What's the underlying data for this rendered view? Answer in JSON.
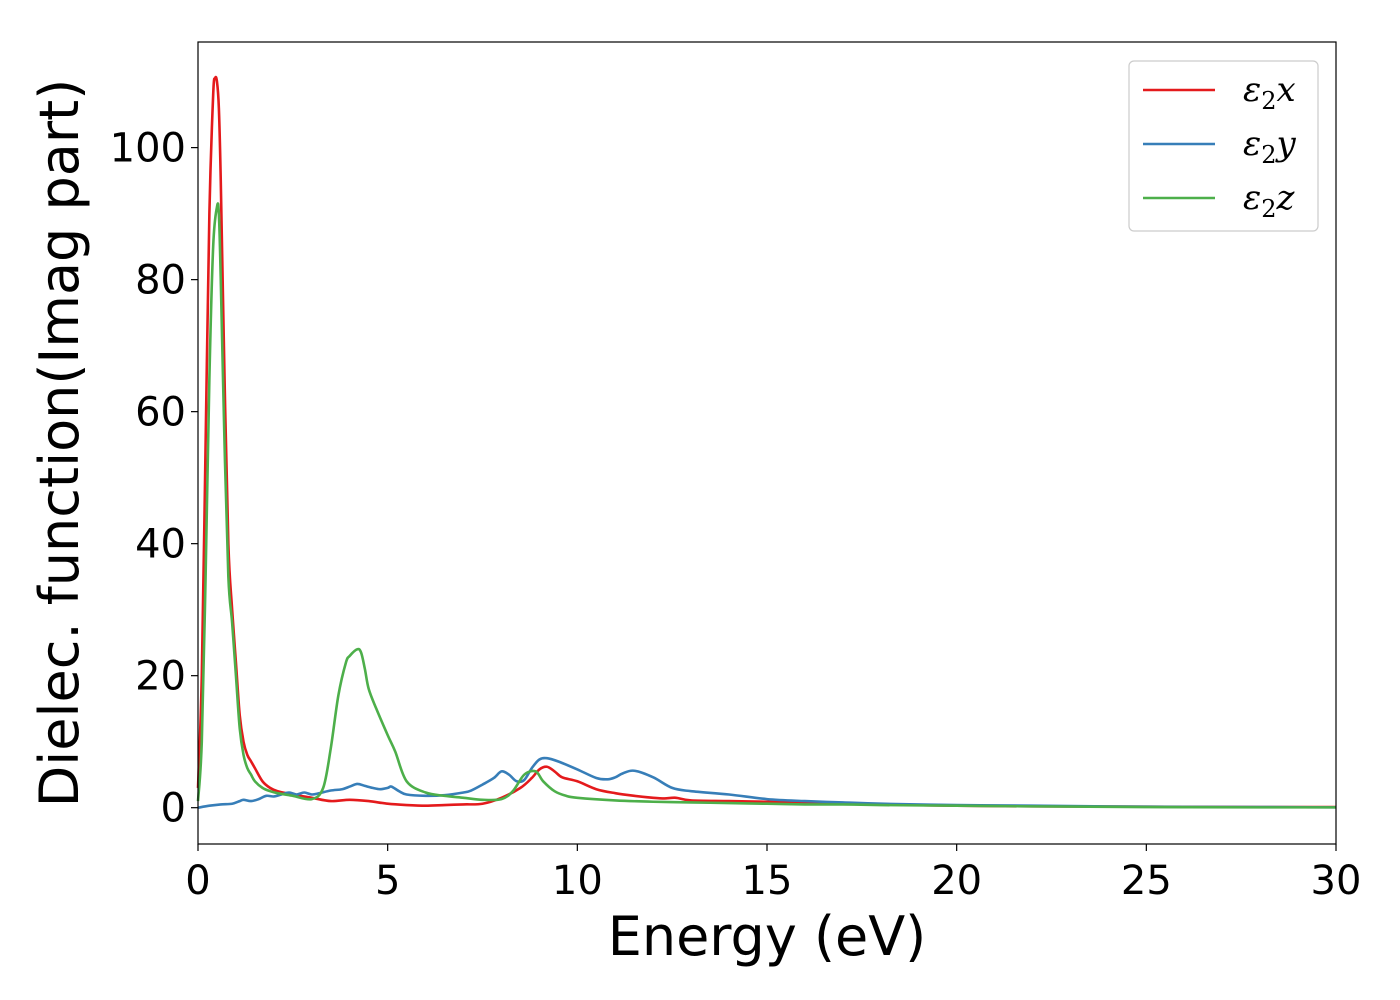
{
  "chart_data": {
    "type": "line",
    "title": "",
    "xlabel": "Energy (eV)",
    "ylabel": "Dielec. function(Imag part)",
    "xlim": [
      0,
      30
    ],
    "ylim": [
      -5.5,
      116
    ],
    "xticks": [
      0,
      5,
      10,
      15,
      20,
      25,
      30
    ],
    "yticks": [
      0,
      20,
      40,
      60,
      80,
      100
    ],
    "grid": false,
    "legend_position": "top-right",
    "series": [
      {
        "name": "ε2x",
        "legend_main": "ε",
        "legend_sub": "2",
        "legend_tail": "x",
        "color": "#e41a1c",
        "x": [
          0,
          0.1,
          0.2,
          0.3,
          0.4,
          0.45,
          0.5,
          0.55,
          0.6,
          0.7,
          0.8,
          0.9,
          1.0,
          1.1,
          1.2,
          1.3,
          1.4,
          1.5,
          1.7,
          1.9,
          2.1,
          2.5,
          3.0,
          3.5,
          4.0,
          4.5,
          5.0,
          5.5,
          6.0,
          6.5,
          7.0,
          7.5,
          8.0,
          8.5,
          8.8,
          9.0,
          9.2,
          9.4,
          9.6,
          10.0,
          10.5,
          11.0,
          11.5,
          12.0,
          12.3,
          12.6,
          13.0,
          14.0,
          15.0,
          16.0,
          17.0,
          18.0,
          20.0,
          22.0,
          25.0,
          28.0,
          30.0
        ],
        "y": [
          3,
          20,
          55,
          90,
          108,
          110.5,
          110,
          106,
          95,
          65,
          40,
          30,
          22,
          14,
          10,
          8,
          7,
          6,
          4,
          3,
          2.5,
          2,
          1.5,
          1,
          1.2,
          1,
          0.6,
          0.4,
          0.3,
          0.4,
          0.5,
          0.6,
          1.5,
          3,
          4.5,
          5.8,
          6.2,
          5.5,
          4.6,
          4,
          2.8,
          2.2,
          1.8,
          1.5,
          1.4,
          1.5,
          1.1,
          1.0,
          0.9,
          0.8,
          0.7,
          0.5,
          0.3,
          0.2,
          0.15,
          0.1,
          0.1
        ]
      },
      {
        "name": "ε2y",
        "legend_main": "ε",
        "legend_sub": "2",
        "legend_tail": "y",
        "color": "#377eb8",
        "x": [
          0,
          0.3,
          0.6,
          0.9,
          1.1,
          1.2,
          1.4,
          1.6,
          1.8,
          2.0,
          2.2,
          2.4,
          2.6,
          2.8,
          3.0,
          3.2,
          3.5,
          3.8,
          4.0,
          4.2,
          4.4,
          4.6,
          4.8,
          5.0,
          5.1,
          5.3,
          5.5,
          6.0,
          6.5,
          7.0,
          7.2,
          7.5,
          7.8,
          8.0,
          8.2,
          8.4,
          8.6,
          8.8,
          9.0,
          9.2,
          9.5,
          10.0,
          10.5,
          10.8,
          11.0,
          11.2,
          11.5,
          12.0,
          12.5,
          13.0,
          14.0,
          15.0,
          16.0,
          17.0,
          18.0,
          20.0,
          22.0,
          25.0,
          28.0,
          30.0
        ],
        "y": [
          0,
          0.3,
          0.5,
          0.6,
          1.0,
          1.2,
          1.0,
          1.3,
          1.8,
          1.7,
          2.0,
          2.3,
          2.0,
          2.3,
          2.0,
          2.2,
          2.6,
          2.8,
          3.2,
          3.6,
          3.3,
          3.0,
          2.8,
          3.0,
          3.2,
          2.5,
          2.0,
          1.8,
          1.9,
          2.3,
          2.6,
          3.5,
          4.5,
          5.5,
          5.0,
          4.0,
          4.2,
          6.0,
          7.3,
          7.5,
          7.0,
          5.8,
          4.5,
          4.3,
          4.6,
          5.2,
          5.6,
          4.6,
          3.0,
          2.5,
          2.0,
          1.3,
          1.0,
          0.8,
          0.6,
          0.4,
          0.3,
          0.15,
          0.1,
          0.05
        ]
      },
      {
        "name": "ε2z",
        "legend_main": "ε",
        "legend_sub": "2",
        "legend_tail": "z",
        "color": "#4daf4a",
        "x": [
          0,
          0.1,
          0.2,
          0.3,
          0.4,
          0.5,
          0.55,
          0.6,
          0.7,
          0.8,
          0.9,
          1.0,
          1.1,
          1.2,
          1.3,
          1.4,
          1.5,
          1.7,
          1.9,
          2.1,
          2.5,
          3.0,
          3.3,
          3.5,
          3.7,
          3.9,
          4.0,
          4.2,
          4.3,
          4.4,
          4.5,
          4.7,
          5.0,
          5.2,
          5.5,
          6.0,
          6.5,
          7.0,
          7.5,
          8.0,
          8.3,
          8.6,
          8.9,
          9.1,
          9.4,
          9.7,
          10.0,
          11.0,
          12.0,
          13.0,
          14.0,
          15.0,
          16.0,
          17.0,
          18.0,
          20.0,
          22.0,
          25.0,
          28.0,
          30.0
        ],
        "y": [
          1,
          10,
          35,
          65,
          85,
          91,
          90,
          80,
          55,
          35,
          28,
          20,
          12,
          8,
          6,
          5,
          4,
          3,
          2.5,
          2.2,
          1.8,
          1.3,
          3,
          9,
          17,
          22,
          23,
          24,
          23.5,
          21,
          18,
          15,
          11,
          8.5,
          4,
          2.3,
          1.8,
          1.5,
          1.2,
          1.3,
          2.5,
          5.0,
          5.5,
          4.0,
          2.5,
          1.8,
          1.5,
          1.1,
          0.9,
          0.8,
          0.7,
          0.6,
          0.5,
          0.5,
          0.4,
          0.3,
          0.2,
          0.1,
          0.05,
          0.05
        ]
      }
    ]
  }
}
